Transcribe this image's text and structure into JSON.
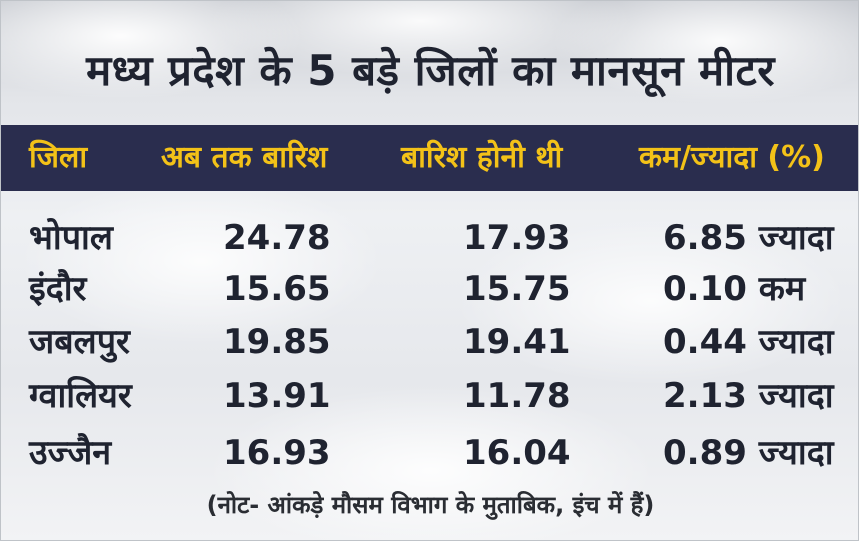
{
  "title": "मध्य प्रदेश के 5 बड़े जिलों का मानसून मीटर",
  "table": {
    "headers": [
      "जिला",
      "अब तक बारिश",
      "बारिश होनी थी",
      "कम/ज्यादा (%)"
    ],
    "rows": [
      [
        "भोपाल",
        "24.78",
        "17.93",
        "6.85 ज्यादा"
      ],
      [
        "इंदौर",
        "15.65",
        "15.75",
        "0.10 कम"
      ],
      [
        "जबलपुर",
        "19.85",
        "19.41",
        "0.44 ज्यादा"
      ],
      [
        "ग्वालियर",
        "13.91",
        "11.78",
        "2.13 ज्यादा"
      ],
      [
        "उज्जैन",
        "16.93",
        "16.04",
        "0.89 ज्यादा"
      ]
    ]
  },
  "note": "(नोट- आंकड़े मौसम विभाग के मुताबिक, इंच में हैं)",
  "colors": {
    "header_band": "#2a2d4e",
    "header_text": "#f3c218",
    "body_text": "#1f2330"
  }
}
